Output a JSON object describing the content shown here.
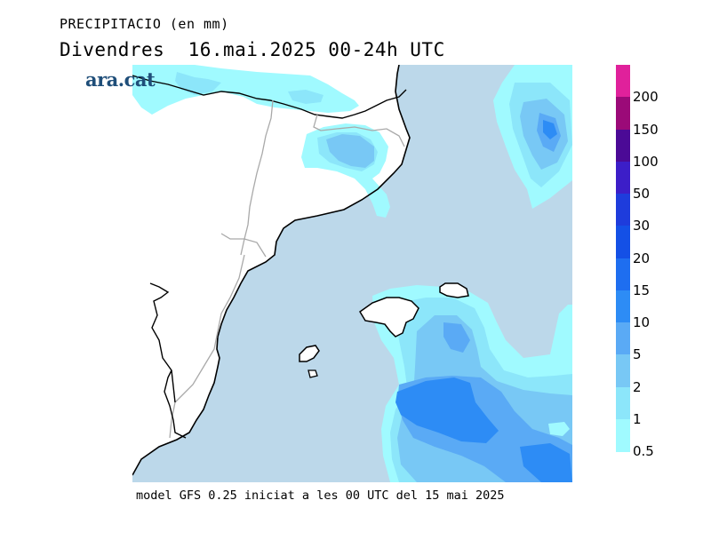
{
  "header": {
    "variable": "PRECIPITACIO (en mm)",
    "date_line": "Divendres  16.mai.2025 00-24h UTC"
  },
  "logo": {
    "text": "ara.cat"
  },
  "footer": {
    "model_line": "model GFS 0.25 iniciat a les 00 UTC del 15 mai 2025"
  },
  "legend": {
    "units": "mm",
    "ticks": [
      "200",
      "150",
      "100",
      "50",
      "30",
      "20",
      "15",
      "10",
      "5",
      "2",
      "1",
      "0.5"
    ],
    "colors": [
      "#e0219b",
      "#9b0a78",
      "#4b0a96",
      "#3c1ec8",
      "#1e3cdc",
      "#1450e6",
      "#1e6ef0",
      "#2d8cf5",
      "#5aaaf5",
      "#78c8f5",
      "#8ce6fa",
      "#a0faff"
    ]
  },
  "map": {
    "land_color": "#ffffff",
    "sea_color": "#bcd8ea",
    "coast_color": "#000000",
    "border_color": "#a9a9a9",
    "precip_colors": {
      "0.5": "#a0faff",
      "1": "#8ce6fa",
      "2": "#78c8f5",
      "5": "#5aaaf5",
      "10": "#2d8cf5"
    }
  }
}
